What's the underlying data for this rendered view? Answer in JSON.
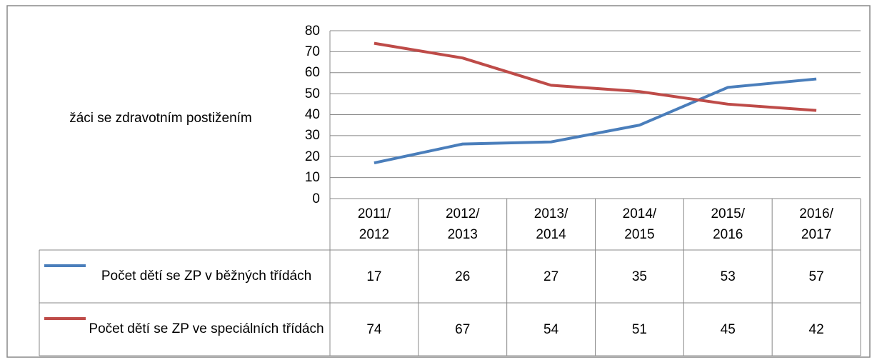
{
  "chart_data": {
    "type": "line",
    "y_axis_label": "žáci se zdravotním postižením",
    "categories": [
      "2011/\n2012",
      "2012/\n2013",
      "2013/\n2014",
      "2014/\n2015",
      "2015/\n2016",
      "2016/\n2017"
    ],
    "series": [
      {
        "name": "Počet dětí se ZP v běžných třídách",
        "color": "#4a7ebb",
        "values": [
          17,
          26,
          27,
          35,
          53,
          57
        ]
      },
      {
        "name": "Počet dětí se ZP ve speciálních třídách",
        "color": "#be4b48",
        "values": [
          74,
          67,
          54,
          51,
          45,
          42
        ]
      }
    ],
    "ylim": [
      0,
      80
    ],
    "yticks": [
      0,
      10,
      20,
      30,
      40,
      50,
      60,
      70,
      80
    ],
    "grid": true
  }
}
